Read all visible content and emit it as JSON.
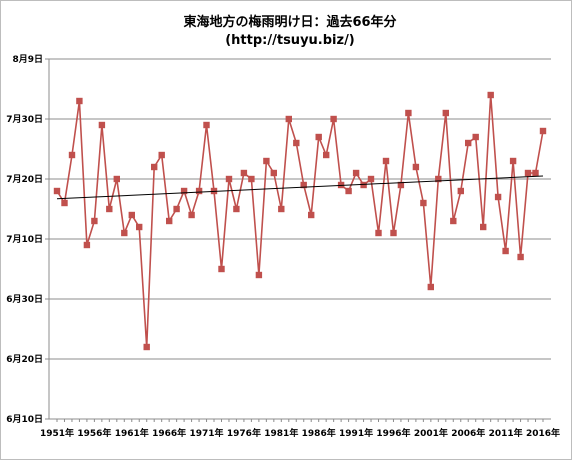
{
  "chart_data": {
    "type": "line",
    "title": "東海地方の梅雨明け日：過去66年分",
    "subtitle": "(http://tsuyu.biz/)",
    "y_tick_labels": [
      "6月10日",
      "6月20日",
      "6月30日",
      "7月10日",
      "7月20日",
      "7月30日",
      "8月9日"
    ],
    "y_range_days": [
      161,
      221
    ],
    "y_day_of_year": [
      161,
      171,
      181,
      191,
      201,
      211,
      221
    ],
    "x_tick_labels": [
      "1951年",
      "1956年",
      "1961年",
      "1966年",
      "1971年",
      "1976年",
      "1981年",
      "1986年",
      "1991年",
      "1996年",
      "2001年",
      "2006年",
      "2011年",
      "2016年"
    ],
    "x_tick_years": [
      1951,
      1956,
      1961,
      1966,
      1971,
      1976,
      1981,
      1986,
      1991,
      1996,
      2001,
      2006,
      2011,
      2016
    ],
    "x_range": [
      1951,
      2016
    ],
    "grid": "horizontal",
    "series": [
      {
        "color": "#c0504d",
        "x": [
          1951,
          1952,
          1953,
          1954,
          1955,
          1956,
          1957,
          1958,
          1959,
          1960,
          1961,
          1962,
          1963,
          1964,
          1965,
          1966,
          1967,
          1968,
          1969,
          1970,
          1971,
          1972,
          1973,
          1974,
          1975,
          1976,
          1977,
          1978,
          1979,
          1980,
          1981,
          1982,
          1983,
          1984,
          1985,
          1986,
          1987,
          1988,
          1989,
          1990,
          1991,
          1992,
          1993,
          1994,
          1995,
          1996,
          1997,
          1998,
          1999,
          2000,
          2001,
          2002,
          2003,
          2004,
          2005,
          2006,
          2007,
          2008,
          2009,
          2010,
          2011,
          2012,
          2013,
          2014,
          2015,
          2016
        ],
        "y": [
          199,
          197,
          205,
          214,
          190,
          194,
          210,
          196,
          201,
          192,
          195,
          193,
          173,
          203,
          205,
          194,
          196,
          199,
          195,
          199,
          210,
          199,
          186,
          201,
          196,
          202,
          201,
          185,
          204,
          202,
          196,
          211,
          207,
          200,
          195,
          208,
          205,
          211,
          200,
          199,
          202,
          200,
          201,
          192,
          204,
          192,
          200,
          212,
          203,
          197,
          183,
          201,
          212,
          194,
          199,
          207,
          208,
          193,
          215,
          198,
          189,
          204,
          188,
          202,
          202,
          209
        ]
      }
    ],
    "trend": {
      "y_start": 197.7,
      "y_end": 201.5
    }
  }
}
